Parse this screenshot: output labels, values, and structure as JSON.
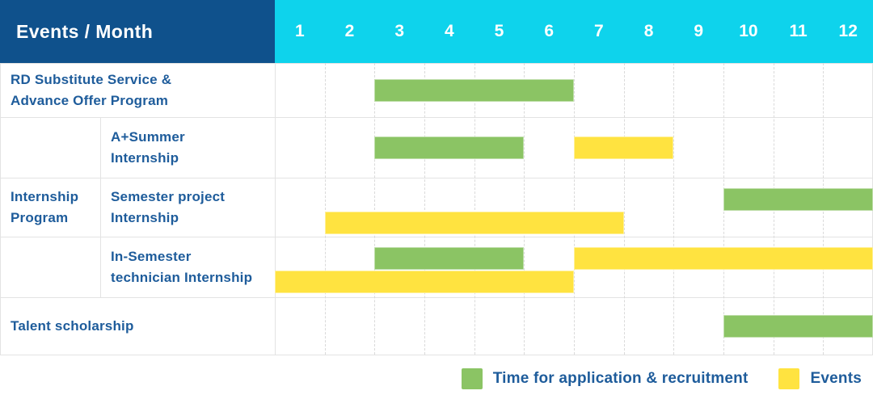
{
  "header": {
    "title": "Events / Month",
    "months": [
      "1",
      "2",
      "3",
      "4",
      "5",
      "6",
      "7",
      "8",
      "9",
      "10",
      "11",
      "12"
    ]
  },
  "colors": {
    "header_bg": "#0F518C",
    "months_bg": "#0ED3EC",
    "green": "#8BC464",
    "yellow": "#FFE340",
    "label_text": "#1E5C9B"
  },
  "legend": {
    "items": [
      {
        "series": "time_for_application",
        "color": "green",
        "label": "Time for application & recruitment"
      },
      {
        "series": "events",
        "color": "yellow",
        "label": "Events"
      }
    ]
  },
  "chart_data": {
    "type": "gantt",
    "unit": "month",
    "x_domain": [
      1,
      12
    ],
    "x_ticks": [
      "1",
      "2",
      "3",
      "4",
      "5",
      "6",
      "7",
      "8",
      "9",
      "10",
      "11",
      "12"
    ],
    "title": "Events / Month",
    "legend_position": "bottom-right",
    "series_colors": {
      "time_for_application": "green",
      "events": "yellow"
    },
    "groups": [
      {
        "label_lines": [],
        "rows": [
          {
            "label_lines": [
              "RD Substitute Service &",
              "Advance Offer Program"
            ],
            "bars": [
              {
                "series": "time_for_application",
                "start": 3,
                "end": 6,
                "lane": "center"
              }
            ]
          }
        ]
      },
      {
        "label_lines": [
          "Internship",
          "Program"
        ],
        "rows": [
          {
            "label_lines": [
              "A+Summer",
              "Internship"
            ],
            "bars": [
              {
                "series": "time_for_application",
                "start": 3,
                "end": 5,
                "lane": "center"
              },
              {
                "series": "events",
                "start": 7,
                "end": 8,
                "lane": "center"
              }
            ]
          },
          {
            "label_lines": [
              "Semester project",
              "Internship"
            ],
            "bars": [
              {
                "series": "time_for_application",
                "start": 10,
                "end": 12,
                "lane": "upper"
              },
              {
                "series": "events",
                "start": 2,
                "end": 7,
                "lane": "lower"
              }
            ]
          },
          {
            "label_lines": [
              "In-Semester",
              "technician Internship"
            ],
            "bars": [
              {
                "series": "time_for_application",
                "start": 3,
                "end": 5,
                "lane": "upper"
              },
              {
                "series": "events",
                "start": 7,
                "end": 12,
                "lane": "upper"
              },
              {
                "series": "events",
                "start": 1,
                "end": 6,
                "lane": "lower"
              }
            ]
          }
        ]
      },
      {
        "label_lines": [],
        "rows": [
          {
            "label_lines": [
              "Talent scholarship"
            ],
            "bars": [
              {
                "series": "time_for_application",
                "start": 10,
                "end": 12,
                "lane": "center"
              }
            ]
          }
        ]
      }
    ]
  }
}
